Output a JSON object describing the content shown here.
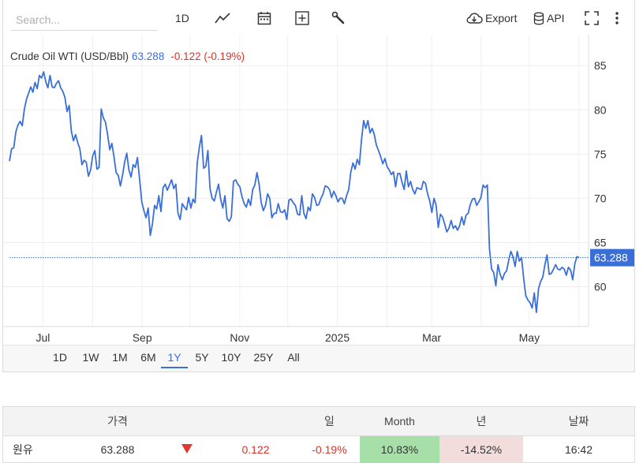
{
  "toolbar": {
    "search_placeholder": "Search...",
    "interval": "1D",
    "export_label": "Export",
    "api_label": "API",
    "icons": [
      "line-chart-icon",
      "calendar-icon",
      "plus-box-icon",
      "wrench-icon",
      "cloud-download-icon",
      "database-icon",
      "fullscreen-icon",
      "more-vertical-icon"
    ]
  },
  "legend": {
    "name": "Crude Oil WTI (USD/Bbl)",
    "price": "63.288",
    "change": "-0.122 (-0.19%)"
  },
  "colors": {
    "line": "#3b6fd8",
    "negative": "#d9342b",
    "positive_bg": "#a6e0a8",
    "negative_bg": "#f2dcdc"
  },
  "chart_data": {
    "type": "line",
    "series": [
      {
        "x_start": "2024-06-14",
        "x_end": "2025-06-11",
        "values": [
          74.2,
          75.6,
          75.7,
          77.5,
          78.3,
          78.7,
          78.2,
          80.1,
          81.2,
          81.9,
          82.6,
          82.0,
          83.1,
          82.4,
          83.9,
          83.6,
          84.3,
          83.2,
          82.5,
          83.9,
          82.6,
          82.5,
          83.0,
          83.3,
          82.5,
          82.1,
          81.4,
          79.8,
          80.5,
          77.6,
          76.5,
          77.2,
          76.3,
          75.6,
          73.8,
          74.3,
          74.1,
          72.5,
          73.2,
          74.8,
          75.4,
          73.3,
          73.5,
          80.1,
          79.1,
          78.6,
          77.2,
          75.5,
          76.2,
          74.7,
          72.9,
          72.6,
          71.4,
          72.6,
          74.1,
          75.1,
          73.2,
          72.4,
          73.8,
          73.5,
          74.6,
          72.1,
          69.6,
          68.6,
          67.8,
          68.9,
          65.8,
          67.1,
          69.2,
          68.8,
          70.3,
          68.5,
          71.2,
          71.6,
          70.9,
          71.5,
          72.1,
          71.1,
          71.6,
          68.3,
          67.6,
          69.4,
          69.0,
          68.7,
          70.1,
          68.9,
          69.9,
          69.5,
          74.0,
          75.8,
          77.1,
          73.4,
          73.6,
          75.4,
          71.1,
          70.0,
          69.7,
          70.7,
          71.6,
          69.9,
          68.9,
          70.3,
          67.7,
          67.4,
          67.9,
          71.9,
          72.1,
          71.6,
          71.3,
          70.2,
          69.4,
          69.0,
          69.9,
          69.2,
          71.0,
          71.5,
          72.9,
          71.6,
          69.5,
          68.6,
          69.2,
          70.5,
          70.0,
          67.8,
          68.3,
          68.3,
          69.4,
          68.5,
          68.4,
          68.7,
          67.6,
          69.8,
          69.9,
          69.5,
          69.2,
          68.2,
          68.1,
          70.3,
          68.3,
          67.7,
          69.0,
          68.6,
          70.5,
          70.1,
          69.2,
          69.3,
          70.0,
          70.5,
          71.4,
          71.3,
          71.0,
          70.1,
          70.8,
          70.3,
          69.6,
          70.0,
          70.0,
          69.4,
          70.3,
          71.0,
          73.0,
          74.0,
          73.3,
          74.4,
          73.8,
          76.6,
          78.8,
          77.9,
          78.8,
          77.4,
          77.9,
          77.2,
          76.0,
          75.4,
          74.7,
          73.9,
          74.5,
          73.6,
          73.2,
          72.7,
          73.0,
          71.3,
          72.8,
          72.8,
          71.8,
          71.0,
          73.1,
          71.3,
          71.9,
          71.0,
          70.5,
          71.2,
          71.1,
          71.0,
          71.9,
          71.7,
          70.5,
          69.7,
          68.4,
          70.0,
          69.2,
          66.7,
          68.2,
          67.9,
          67.1,
          66.2,
          66.6,
          67.5,
          66.6,
          66.9,
          66.4,
          66.9,
          67.9,
          67.0,
          68.1,
          68.3,
          69.3,
          69.9,
          70.0,
          69.2,
          69.6,
          70.1,
          71.5,
          71.2,
          71.5,
          64.3,
          62.0,
          61.6,
          60.1,
          62.5,
          61.4,
          60.8,
          61.5,
          61.8,
          63.0,
          64.0,
          63.4,
          62.3,
          64.0,
          62.9,
          63.3,
          61.0,
          59.0,
          58.5,
          58.2,
          57.6,
          59.3,
          57.1,
          59.8,
          60.6,
          61.1,
          62.5,
          63.6,
          61.4,
          61.5,
          62.0,
          62.5,
          62.0,
          61.9,
          62.2,
          62.0,
          61.3,
          62.2,
          61.9,
          60.8,
          62.6,
          63.4,
          63.29
        ]
      }
    ],
    "x_tick_labels": [
      "Jul",
      "Sep",
      "Nov",
      "2025",
      "Mar",
      "May"
    ],
    "y_tick_labels": [
      85,
      80,
      75,
      70,
      65,
      60
    ],
    "ylim": [
      55.5,
      88.5
    ],
    "last_value_label": "63.288",
    "grid": true,
    "legend_position": "top-left"
  },
  "periods": [
    {
      "label": "1D",
      "active": false
    },
    {
      "label": "1W",
      "active": false
    },
    {
      "label": "1M",
      "active": false
    },
    {
      "label": "6M",
      "active": false
    },
    {
      "label": "1Y",
      "active": true
    },
    {
      "label": "5Y",
      "active": false
    },
    {
      "label": "10Y",
      "active": false
    },
    {
      "label": "25Y",
      "active": false
    },
    {
      "label": "All",
      "active": false
    }
  ],
  "table": {
    "headers": [
      "",
      "가격",
      "",
      "",
      "일",
      "Month",
      "년",
      "날짜"
    ],
    "rows": [
      {
        "name": "원유",
        "price": "63.288",
        "direction": "down",
        "change": "0.122",
        "day": "-0.19%",
        "month": "10.83%",
        "year": "-14.52%",
        "date": "16:42"
      }
    ]
  }
}
